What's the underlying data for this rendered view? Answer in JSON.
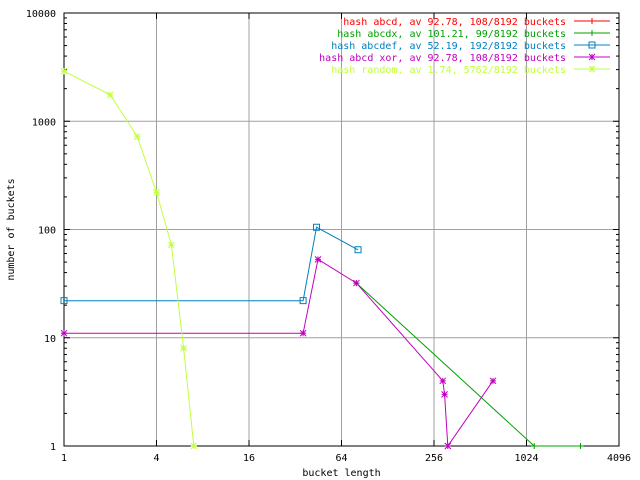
{
  "chart_data": {
    "type": "line",
    "title": "",
    "xlabel": "bucket length",
    "ylabel": "number of buckets",
    "xscale": "log2",
    "yscale": "log10",
    "xlim": [
      1,
      4096
    ],
    "ylim": [
      1,
      10000
    ],
    "xticks": [
      1,
      4,
      16,
      64,
      256,
      1024,
      4096
    ],
    "yticks": [
      1,
      10,
      100,
      1000,
      10000
    ],
    "grid": true,
    "legend_position": "top-right",
    "series": [
      {
        "name": "hash abcd, av 92.78, 108/8192 buckets",
        "color": "#ff0000",
        "marker": "plus",
        "points": []
      },
      {
        "name": "hash abcdx, av 101.21, 99/8192 buckets",
        "color": "#00a000",
        "marker": "plus",
        "points": [
          [
            80,
            32
          ],
          [
            1150,
            1
          ],
          [
            2300,
            1
          ]
        ]
      },
      {
        "name": "hash abcdef, av 52.19, 192/8192 buckets",
        "color": "#0080c0",
        "marker": "square",
        "points": [
          [
            1,
            22
          ],
          [
            36,
            22
          ],
          [
            44,
            105
          ],
          [
            82,
            65
          ]
        ]
      },
      {
        "name": "hash abcd xor, av 92.78, 108/8192 buckets",
        "color": "#c000c0",
        "marker": "star",
        "points": [
          [
            1,
            11
          ],
          [
            36,
            11
          ],
          [
            45,
            53
          ],
          [
            80,
            32
          ],
          [
            292,
            4
          ],
          [
            300,
            3
          ],
          [
            315,
            1
          ],
          [
            620,
            4
          ]
        ]
      },
      {
        "name": "hash random, av 1.74, 5762/8192 buckets",
        "color": "#c0ff40",
        "marker": "star",
        "points": [
          [
            1,
            2900
          ],
          [
            2,
            1750
          ],
          [
            3,
            720
          ],
          [
            4,
            220
          ],
          [
            5,
            72
          ],
          [
            6,
            8
          ],
          [
            7,
            1
          ]
        ]
      }
    ]
  }
}
